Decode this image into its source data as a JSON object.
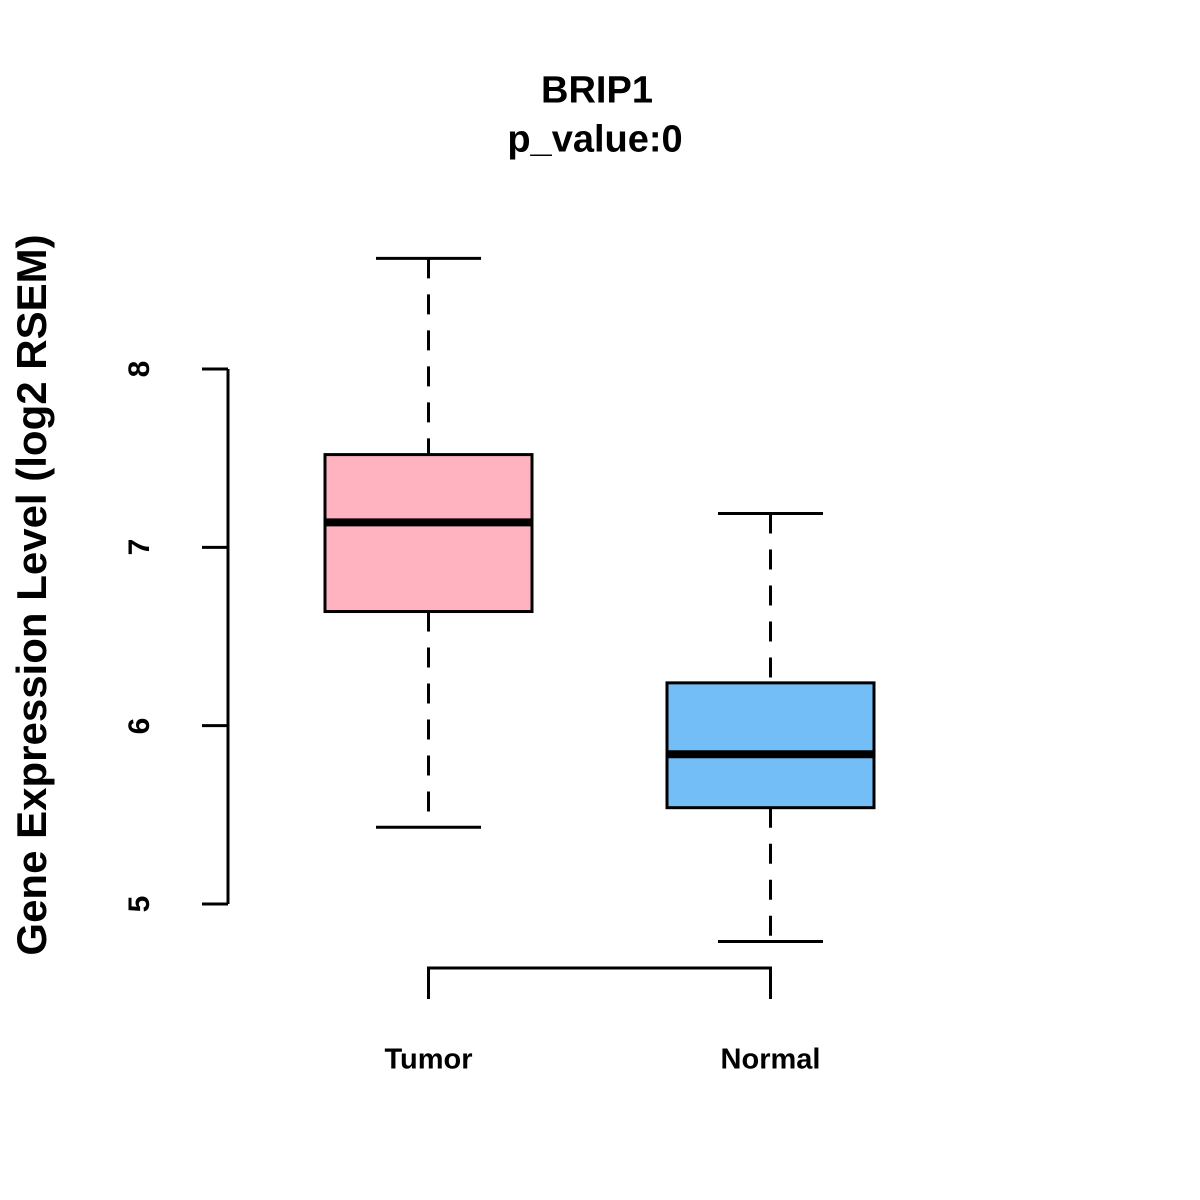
{
  "chart_data": {
    "type": "boxplot",
    "title": "BRIP1",
    "subtitle": "p_value:0",
    "ylabel": "Gene Expression Level (log2 RSEM)",
    "xlabel": "",
    "categories": [
      "Tumor",
      "Normal"
    ],
    "yticks": [
      "5",
      "6",
      "7",
      "8"
    ],
    "ytick_values": [
      5,
      6,
      7,
      8
    ],
    "ylim": [
      4.6,
      8.8
    ],
    "grid": false,
    "legend": "none",
    "axis_color": "#000000",
    "series": [
      {
        "name": "Tumor",
        "color": "#FFB3C1",
        "border_color": "#000000",
        "whisker_low": 5.43,
        "q1": 6.64,
        "median": 7.14,
        "q3": 7.52,
        "whisker_high": 8.62,
        "outliers": []
      },
      {
        "name": "Normal",
        "color": "#74BEF8",
        "border_color": "#000000",
        "whisker_low": 4.79,
        "q1": 5.54,
        "median": 5.84,
        "q3": 6.24,
        "whisker_high": 7.19,
        "outliers": []
      }
    ]
  }
}
